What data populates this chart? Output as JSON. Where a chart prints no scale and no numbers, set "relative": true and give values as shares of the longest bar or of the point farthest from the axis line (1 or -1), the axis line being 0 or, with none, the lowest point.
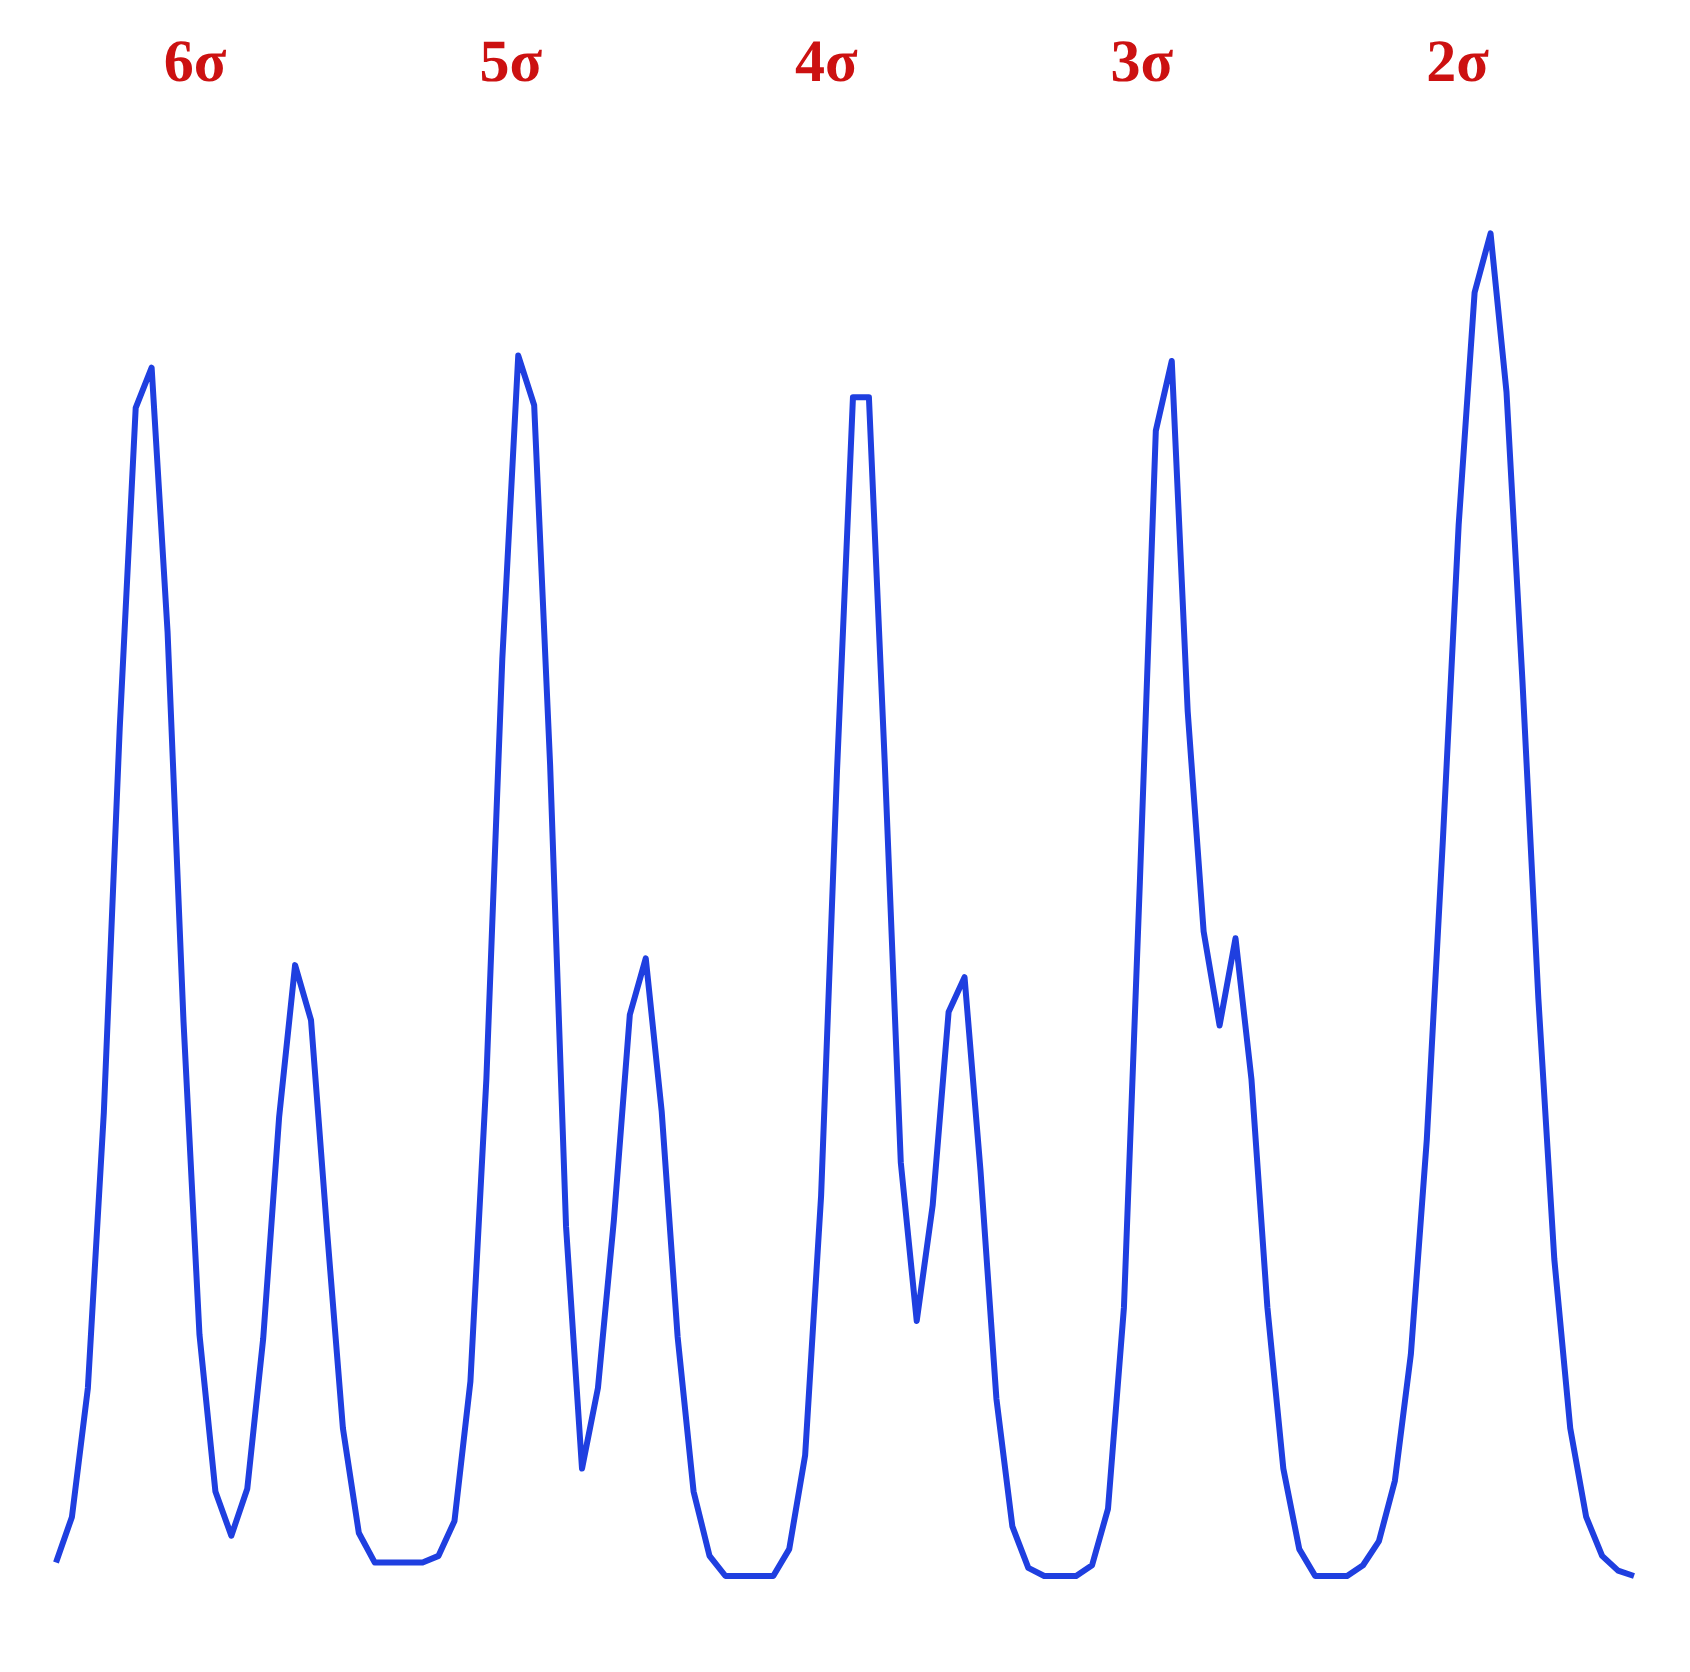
{
  "chart_data": {
    "type": "line",
    "relative": true,
    "marker": "none",
    "annotations": [
      "6σ",
      "5σ",
      "4σ",
      "3σ",
      "2σ"
    ],
    "categories": [
      null,
      null,
      null,
      null,
      null,
      null,
      null,
      null,
      null,
      null,
      null,
      null,
      null,
      null,
      null,
      null,
      null,
      null,
      null,
      null,
      null,
      null,
      null,
      null,
      null,
      null,
      null,
      null,
      null,
      null,
      null,
      null,
      null,
      null,
      null,
      null,
      null,
      null,
      null,
      null,
      null,
      null,
      null,
      null,
      null,
      null,
      null,
      null,
      null,
      null,
      null,
      null,
      null,
      null,
      null,
      null,
      null,
      null,
      null,
      null,
      null,
      null,
      null,
      null,
      null,
      null,
      null,
      null,
      null,
      null,
      null,
      null,
      null,
      null,
      null,
      null,
      null,
      null,
      null,
      null,
      null,
      null,
      null,
      null,
      null,
      null,
      null,
      null,
      null,
      null,
      null,
      null,
      null,
      null,
      null,
      null,
      null,
      null,
      null,
      null
    ],
    "series": [
      {
        "color": "#1f3fe0",
        "values": [
          0.01,
          0.044,
          0.14,
          0.345,
          0.632,
          0.87,
          0.9,
          0.703,
          0.413,
          0.18,
          0.063,
          0.03,
          0.065,
          0.177,
          0.342,
          0.455,
          0.414,
          0.258,
          0.11,
          0.032,
          0.01,
          0.01,
          0.01,
          0.01,
          0.015,
          0.041,
          0.145,
          0.37,
          0.683,
          0.909,
          0.872,
          0.604,
          0.26,
          0.08,
          0.14,
          0.265,
          0.418,
          0.46,
          0.346,
          0.178,
          0.063,
          0.015,
          0,
          0,
          0,
          0,
          0.02,
          0.09,
          0.283,
          0.6,
          0.878,
          0.878,
          0.604,
          0.308,
          0.19,
          0.276,
          0.42,
          0.446,
          0.302,
          0.132,
          0.037,
          0.006,
          0,
          0,
          0,
          0.008,
          0.05,
          0.2,
          0.517,
          0.853,
          0.905,
          0.644,
          0.48,
          0.41,
          0.475,
          0.37,
          0.2,
          0.08,
          0.02,
          0,
          0,
          0,
          0.008,
          0.026,
          0.071,
          0.165,
          0.325,
          0.546,
          0.783,
          0.956,
          1,
          0.882,
          0.667,
          0.43,
          0.236,
          0.11,
          0.044,
          0.015,
          0.004,
          0
        ]
      }
    ]
  }
}
